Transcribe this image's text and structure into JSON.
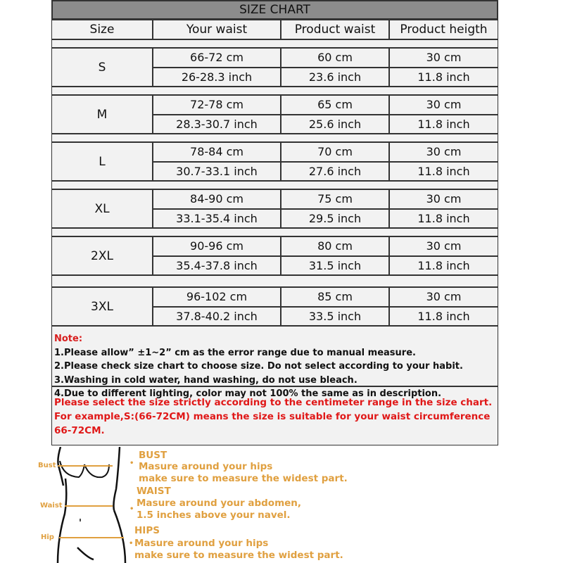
{
  "title": "SIZE CHART",
  "headers": [
    "Size",
    "Your waist",
    "Product waist",
    "Product heigth"
  ],
  "rows": [
    {
      "size": "S",
      "cm": [
        "66-72 cm",
        "60 cm",
        "30 cm"
      ],
      "inch": [
        "26-28.3 inch",
        "23.6 inch",
        "11.8 inch"
      ]
    },
    {
      "size": "M",
      "cm": [
        "72-78 cm",
        "65 cm",
        "30 cm"
      ],
      "inch": [
        "28.3-30.7 inch",
        "25.6 inch",
        "11.8 inch"
      ]
    },
    {
      "size": "L",
      "cm": [
        "78-84 cm",
        "70 cm",
        "30 cm"
      ],
      "inch": [
        "30.7-33.1 inch",
        "27.6 inch",
        "11.8 inch"
      ]
    },
    {
      "size": "XL",
      "cm": [
        "84-90 cm",
        "75 cm",
        "30 cm"
      ],
      "inch": [
        "33.1-35.4 inch",
        "29.5 inch",
        "11.8 inch"
      ]
    },
    {
      "size": "2XL",
      "cm": [
        "90-96 cm",
        "80 cm",
        "30 cm"
      ],
      "inch": [
        "35.4-37.8 inch",
        "31.5 inch",
        "11.8 inch"
      ]
    },
    {
      "size": "3XL",
      "cm": [
        "96-102 cm",
        "85 cm",
        "30 cm"
      ],
      "inch": [
        "37.8-40.2 inch",
        "33.5 inch",
        "11.8 inch"
      ]
    }
  ],
  "notes": {
    "heading": "Note:",
    "items": [
      "1.Please allow” ±1~2” cm as the error range due to manual measure.",
      "2.Please check size chart to choose size. Do not select according to your habit.",
      "3.Washing in cold water, hand washing, do not use bleach.",
      "4.Due to different lighting, color may not 100% the same as in description."
    ]
  },
  "warning": [
    "Please select the size strictly according to the centimeter range in the size chart.",
    "For example,S:(66-72CM) means the size is suitable for your waist circumference 66-72CM."
  ],
  "guide": {
    "labels": {
      "bust": "Bust",
      "waist": "Waist",
      "hip": "Hip"
    },
    "bust": {
      "title": "BUST",
      "line1": "Masure around your hips",
      "line2": "make sure to measure the widest part."
    },
    "waist": {
      "title": "WAIST",
      "line1": "Masure around your abdomen,",
      "line2": "1.5 inches above your navel."
    },
    "hips": {
      "title": "HIPS",
      "line1": "Masure around your hips",
      "line2": "make sure to measure the widest part."
    },
    "accent": "#e0a040"
  },
  "colors": {
    "header_bg": "#8c8c8c",
    "cell_bg": "#f2f2f2",
    "warning": "#e01818"
  }
}
